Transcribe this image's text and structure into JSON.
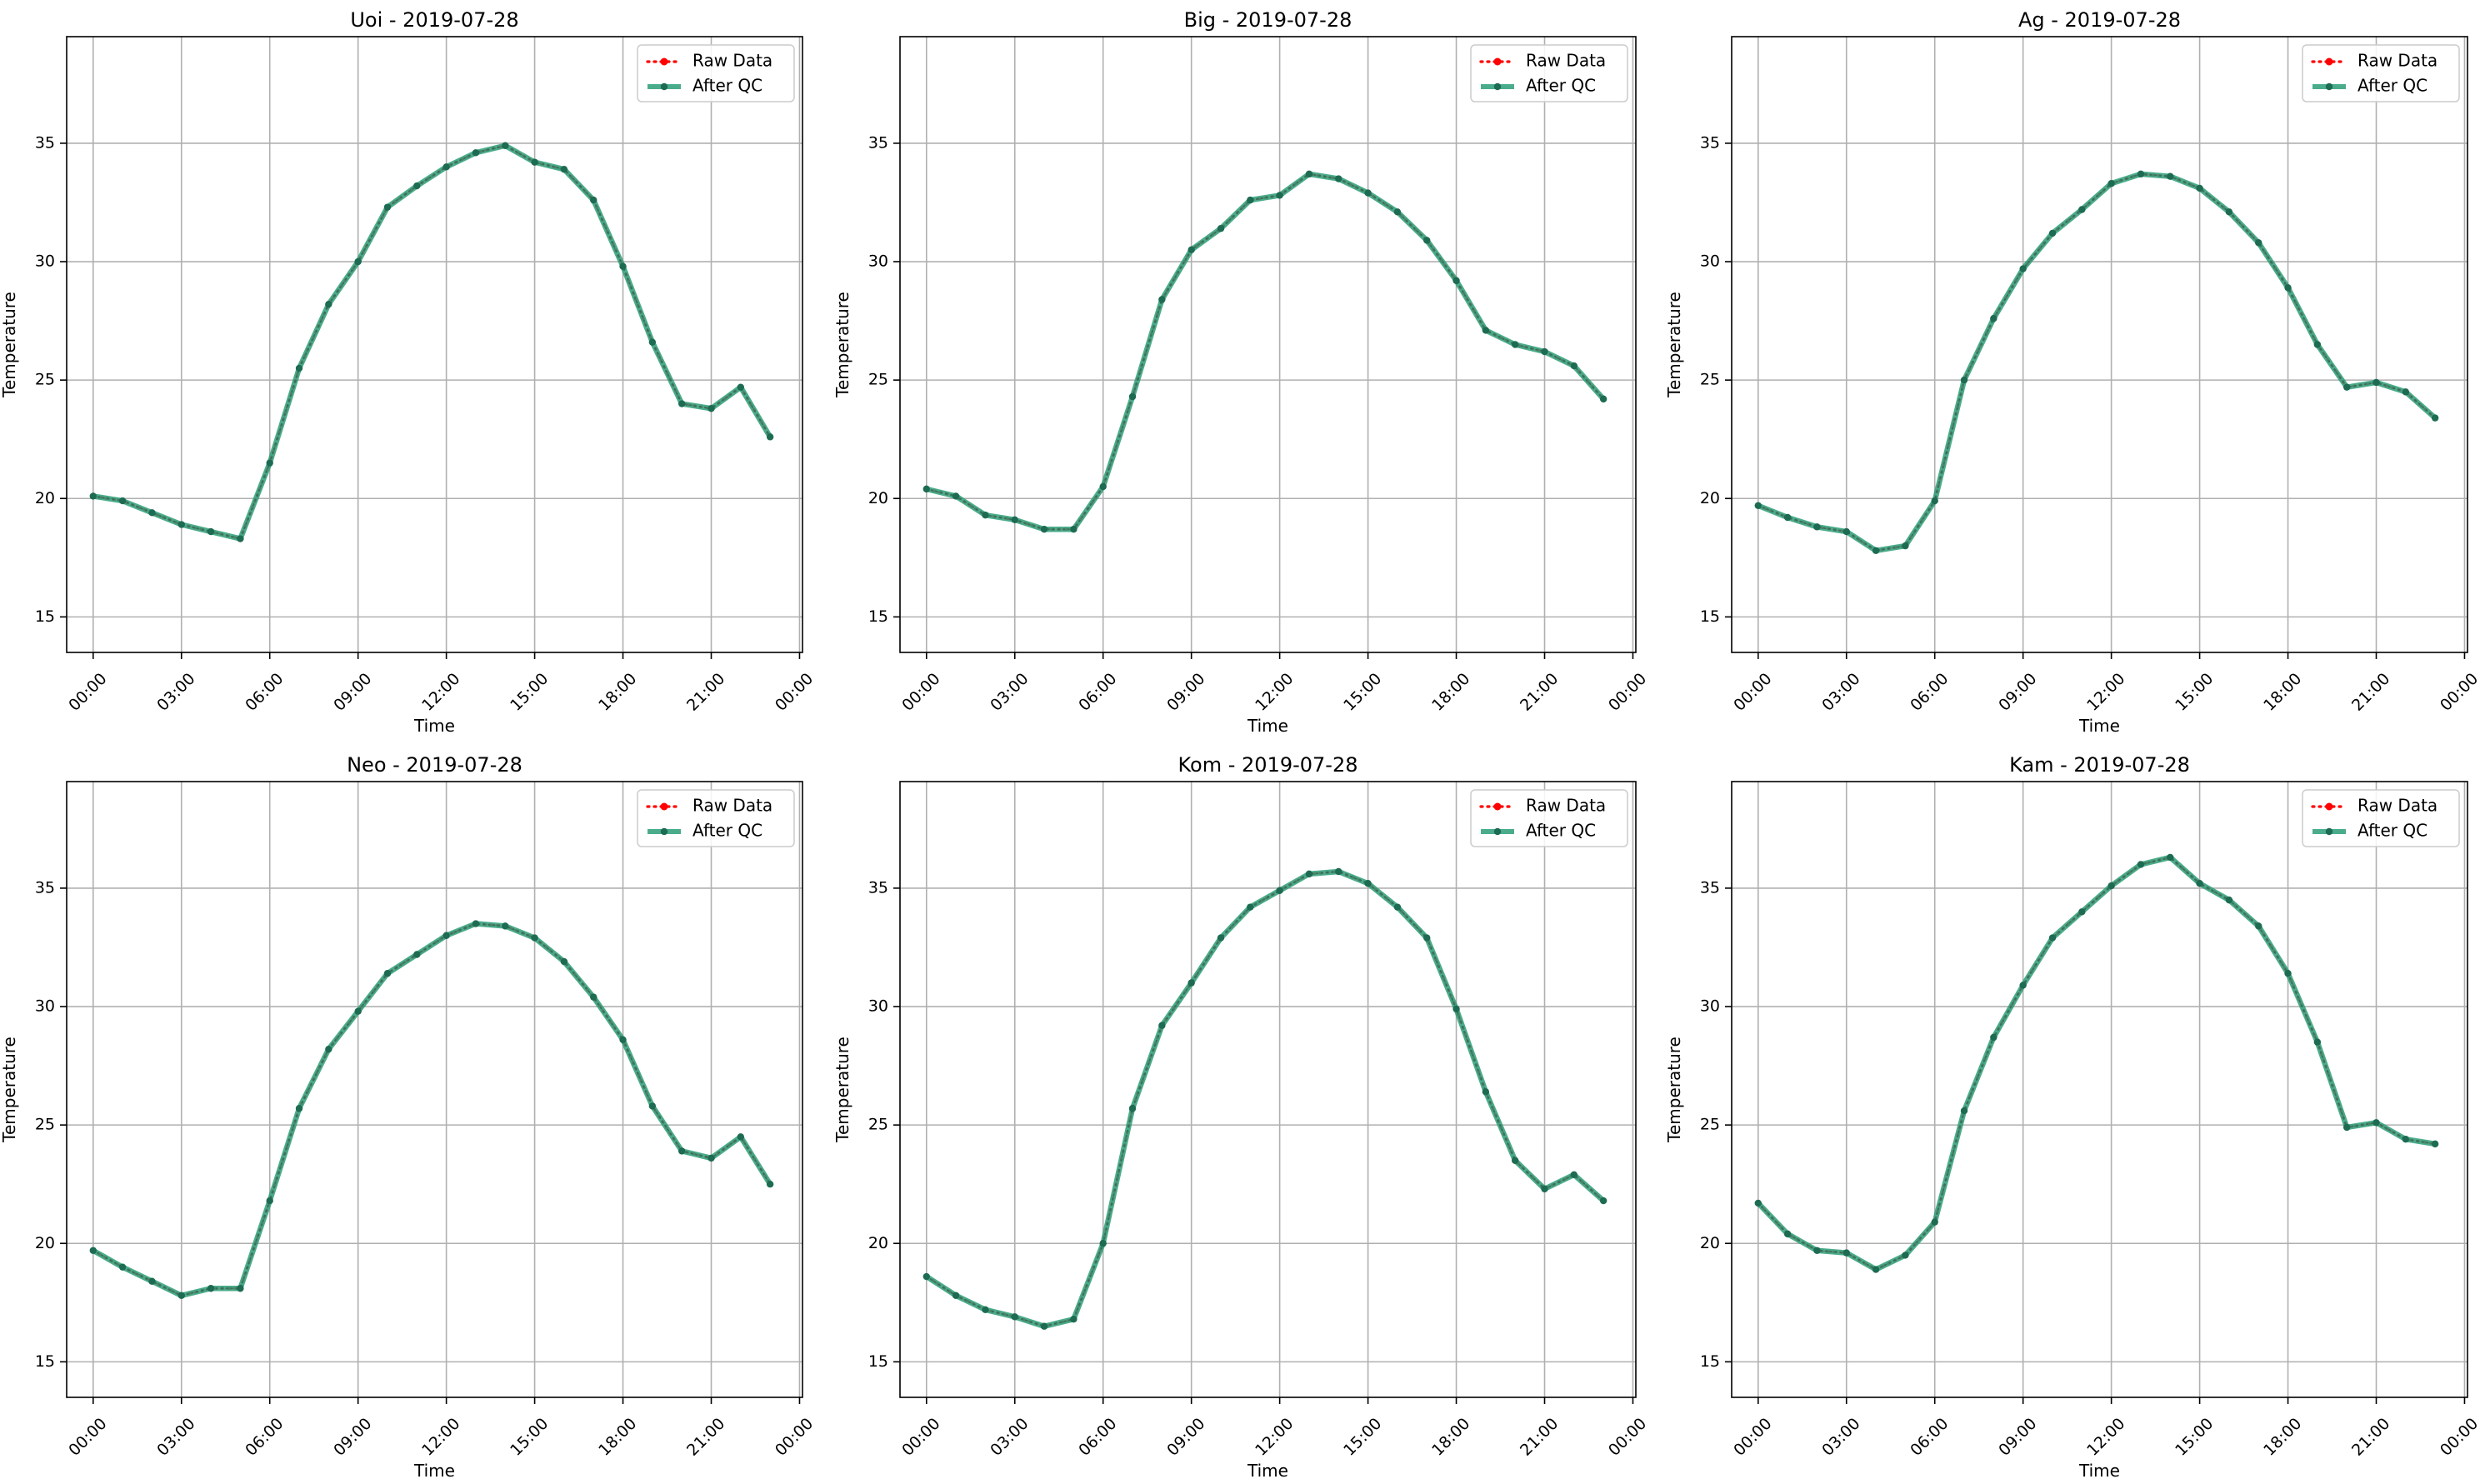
{
  "figure": {
    "legend": {
      "raw_label": "Raw Data",
      "qc_label": "After QC",
      "placement": "upper-right"
    }
  },
  "colors": {
    "raw": "#ff0000",
    "qc": "#2a9d78",
    "qc_point": "#1d6b52",
    "grid": "#b0b0b0",
    "frame": "#000000"
  },
  "chart_data": [
    {
      "type": "line",
      "title": "Uoi - 2019-07-28",
      "xlabel": "Time",
      "ylabel": "Temperature",
      "xlim": [
        -0.9,
        24.1
      ],
      "ylim": [
        13.5,
        39.5
      ],
      "xticks": [
        0,
        3,
        6,
        9,
        12,
        15,
        18,
        21,
        24
      ],
      "xtick_labels": [
        "00:00",
        "03:00",
        "06:00",
        "09:00",
        "12:00",
        "15:00",
        "18:00",
        "21:00",
        "00:00"
      ],
      "yticks": [
        15,
        20,
        25,
        30,
        35
      ],
      "ytick_labels": [
        "15",
        "20",
        "25",
        "30",
        "35"
      ],
      "grid": true,
      "x": [
        0,
        1,
        2,
        3,
        4,
        5,
        6,
        7,
        8,
        9,
        10,
        11,
        12,
        13,
        14,
        15,
        16,
        17,
        18,
        19,
        20,
        21,
        22,
        23
      ],
      "series": [
        {
          "name": "Raw Data",
          "values": [
            20.1,
            19.9,
            19.4,
            18.9,
            18.6,
            18.3,
            21.5,
            25.5,
            28.2,
            30.0,
            32.3,
            33.2,
            34.0,
            34.6,
            34.9,
            34.2,
            33.9,
            32.6,
            29.8,
            26.6,
            24.0,
            23.8,
            24.7,
            22.6
          ]
        },
        {
          "name": "After QC",
          "values": [
            20.1,
            19.9,
            19.4,
            18.9,
            18.6,
            18.3,
            21.5,
            25.5,
            28.2,
            30.0,
            32.3,
            33.2,
            34.0,
            34.6,
            34.9,
            34.2,
            33.9,
            32.6,
            29.8,
            26.6,
            24.0,
            23.8,
            24.7,
            22.6
          ]
        }
      ]
    },
    {
      "type": "line",
      "title": "Big - 2019-07-28",
      "xlabel": "Time",
      "ylabel": "Temperature",
      "xlim": [
        -0.9,
        24.1
      ],
      "ylim": [
        13.5,
        39.5
      ],
      "xticks": [
        0,
        3,
        6,
        9,
        12,
        15,
        18,
        21,
        24
      ],
      "xtick_labels": [
        "00:00",
        "03:00",
        "06:00",
        "09:00",
        "12:00",
        "15:00",
        "18:00",
        "21:00",
        "00:00"
      ],
      "yticks": [
        15,
        20,
        25,
        30,
        35
      ],
      "ytick_labels": [
        "15",
        "20",
        "25",
        "30",
        "35"
      ],
      "grid": true,
      "x": [
        0,
        1,
        2,
        3,
        4,
        5,
        6,
        7,
        8,
        9,
        10,
        11,
        12,
        13,
        14,
        15,
        16,
        17,
        18,
        19,
        20,
        21,
        22,
        23
      ],
      "series": [
        {
          "name": "Raw Data",
          "values": [
            20.4,
            20.1,
            19.3,
            19.1,
            18.7,
            18.7,
            20.5,
            24.3,
            28.4,
            30.5,
            31.4,
            32.6,
            32.8,
            33.7,
            33.5,
            32.9,
            32.1,
            30.9,
            29.2,
            27.1,
            26.5,
            26.2,
            25.6,
            24.2
          ]
        },
        {
          "name": "After QC",
          "values": [
            20.4,
            20.1,
            19.3,
            19.1,
            18.7,
            18.7,
            20.5,
            24.3,
            28.4,
            30.5,
            31.4,
            32.6,
            32.8,
            33.7,
            33.5,
            32.9,
            32.1,
            30.9,
            29.2,
            27.1,
            26.5,
            26.2,
            25.6,
            24.2
          ]
        }
      ]
    },
    {
      "type": "line",
      "title": "Ag - 2019-07-28",
      "xlabel": "Time",
      "ylabel": "Temperature",
      "xlim": [
        -0.9,
        24.1
      ],
      "ylim": [
        13.5,
        39.5
      ],
      "xticks": [
        0,
        3,
        6,
        9,
        12,
        15,
        18,
        21,
        24
      ],
      "xtick_labels": [
        "00:00",
        "03:00",
        "06:00",
        "09:00",
        "12:00",
        "15:00",
        "18:00",
        "21:00",
        "00:00"
      ],
      "yticks": [
        15,
        20,
        25,
        30,
        35
      ],
      "ytick_labels": [
        "15",
        "20",
        "25",
        "30",
        "35"
      ],
      "grid": true,
      "x": [
        0,
        1,
        2,
        3,
        4,
        5,
        6,
        7,
        8,
        9,
        10,
        11,
        12,
        13,
        14,
        15,
        16,
        17,
        18,
        19,
        20,
        21,
        22,
        23
      ],
      "series": [
        {
          "name": "Raw Data",
          "values": [
            19.7,
            19.2,
            18.8,
            18.6,
            17.8,
            18.0,
            19.9,
            25.0,
            27.6,
            29.7,
            31.2,
            32.2,
            33.3,
            33.7,
            33.6,
            33.1,
            32.1,
            30.8,
            28.9,
            26.5,
            24.7,
            24.9,
            24.5,
            23.4
          ]
        },
        {
          "name": "After QC",
          "values": [
            19.7,
            19.2,
            18.8,
            18.6,
            17.8,
            18.0,
            19.9,
            25.0,
            27.6,
            29.7,
            31.2,
            32.2,
            33.3,
            33.7,
            33.6,
            33.1,
            32.1,
            30.8,
            28.9,
            26.5,
            24.7,
            24.9,
            24.5,
            23.4
          ]
        }
      ]
    },
    {
      "type": "line",
      "title": "Neo - 2019-07-28",
      "xlabel": "Time",
      "ylabel": "Temperature",
      "xlim": [
        -0.9,
        24.1
      ],
      "ylim": [
        13.5,
        39.5
      ],
      "xticks": [
        0,
        3,
        6,
        9,
        12,
        15,
        18,
        21,
        24
      ],
      "xtick_labels": [
        "00:00",
        "03:00",
        "06:00",
        "09:00",
        "12:00",
        "15:00",
        "18:00",
        "21:00",
        "00:00"
      ],
      "yticks": [
        15,
        20,
        25,
        30,
        35
      ],
      "ytick_labels": [
        "15",
        "20",
        "25",
        "30",
        "35"
      ],
      "grid": true,
      "x": [
        0,
        1,
        2,
        3,
        4,
        5,
        6,
        7,
        8,
        9,
        10,
        11,
        12,
        13,
        14,
        15,
        16,
        17,
        18,
        19,
        20,
        21,
        22,
        23
      ],
      "series": [
        {
          "name": "Raw Data",
          "values": [
            19.7,
            19.0,
            18.4,
            17.8,
            18.1,
            18.1,
            21.8,
            25.7,
            28.2,
            29.8,
            31.4,
            32.2,
            33.0,
            33.5,
            33.4,
            32.9,
            31.9,
            30.4,
            28.6,
            25.8,
            23.9,
            23.6,
            24.5,
            22.5
          ]
        },
        {
          "name": "After QC",
          "values": [
            19.7,
            19.0,
            18.4,
            17.8,
            18.1,
            18.1,
            21.8,
            25.7,
            28.2,
            29.8,
            31.4,
            32.2,
            33.0,
            33.5,
            33.4,
            32.9,
            31.9,
            30.4,
            28.6,
            25.8,
            23.9,
            23.6,
            24.5,
            22.5
          ]
        }
      ]
    },
    {
      "type": "line",
      "title": "Kom - 2019-07-28",
      "xlabel": "Time",
      "ylabel": "Temperature",
      "xlim": [
        -0.9,
        24.1
      ],
      "ylim": [
        13.5,
        39.5
      ],
      "xticks": [
        0,
        3,
        6,
        9,
        12,
        15,
        18,
        21,
        24
      ],
      "xtick_labels": [
        "00:00",
        "03:00",
        "06:00",
        "09:00",
        "12:00",
        "15:00",
        "18:00",
        "21:00",
        "00:00"
      ],
      "yticks": [
        15,
        20,
        25,
        30,
        35
      ],
      "ytick_labels": [
        "15",
        "20",
        "25",
        "30",
        "35"
      ],
      "grid": true,
      "x": [
        0,
        1,
        2,
        3,
        4,
        5,
        6,
        7,
        8,
        9,
        10,
        11,
        12,
        13,
        14,
        15,
        16,
        17,
        18,
        19,
        20,
        21,
        22,
        23
      ],
      "series": [
        {
          "name": "Raw Data",
          "values": [
            18.6,
            17.8,
            17.2,
            16.9,
            16.5,
            16.8,
            20.0,
            25.7,
            29.2,
            31.0,
            32.9,
            34.2,
            34.9,
            35.6,
            35.7,
            35.2,
            34.2,
            32.9,
            29.9,
            26.4,
            23.5,
            22.3,
            22.9,
            21.8
          ]
        },
        {
          "name": "After QC",
          "values": [
            18.6,
            17.8,
            17.2,
            16.9,
            16.5,
            16.8,
            20.0,
            25.7,
            29.2,
            31.0,
            32.9,
            34.2,
            34.9,
            35.6,
            35.7,
            35.2,
            34.2,
            32.9,
            29.9,
            26.4,
            23.5,
            22.3,
            22.9,
            21.8
          ]
        }
      ]
    },
    {
      "type": "line",
      "title": "Kam - 2019-07-28",
      "xlabel": "Time",
      "ylabel": "Temperature",
      "xlim": [
        -0.9,
        24.1
      ],
      "ylim": [
        13.5,
        39.5
      ],
      "xticks": [
        0,
        3,
        6,
        9,
        12,
        15,
        18,
        21,
        24
      ],
      "xtick_labels": [
        "00:00",
        "03:00",
        "06:00",
        "09:00",
        "12:00",
        "15:00",
        "18:00",
        "21:00",
        "00:00"
      ],
      "yticks": [
        15,
        20,
        25,
        30,
        35
      ],
      "ytick_labels": [
        "15",
        "20",
        "25",
        "30",
        "35"
      ],
      "grid": true,
      "x": [
        0,
        1,
        2,
        3,
        4,
        5,
        6,
        7,
        8,
        9,
        10,
        11,
        12,
        13,
        14,
        15,
        16,
        17,
        18,
        19,
        20,
        21,
        22,
        23
      ],
      "series": [
        {
          "name": "Raw Data",
          "values": [
            21.7,
            20.4,
            19.7,
            19.6,
            18.9,
            19.5,
            20.9,
            25.6,
            28.7,
            30.9,
            32.9,
            34.0,
            35.1,
            36.0,
            36.3,
            35.2,
            34.5,
            33.4,
            31.4,
            28.5,
            24.9,
            25.1,
            24.4,
            24.2
          ]
        },
        {
          "name": "After QC",
          "values": [
            21.7,
            20.4,
            19.7,
            19.6,
            18.9,
            19.5,
            20.9,
            25.6,
            28.7,
            30.9,
            32.9,
            34.0,
            35.1,
            36.0,
            36.3,
            35.2,
            34.5,
            33.4,
            31.4,
            28.5,
            24.9,
            25.1,
            24.4,
            24.2
          ]
        }
      ]
    }
  ]
}
